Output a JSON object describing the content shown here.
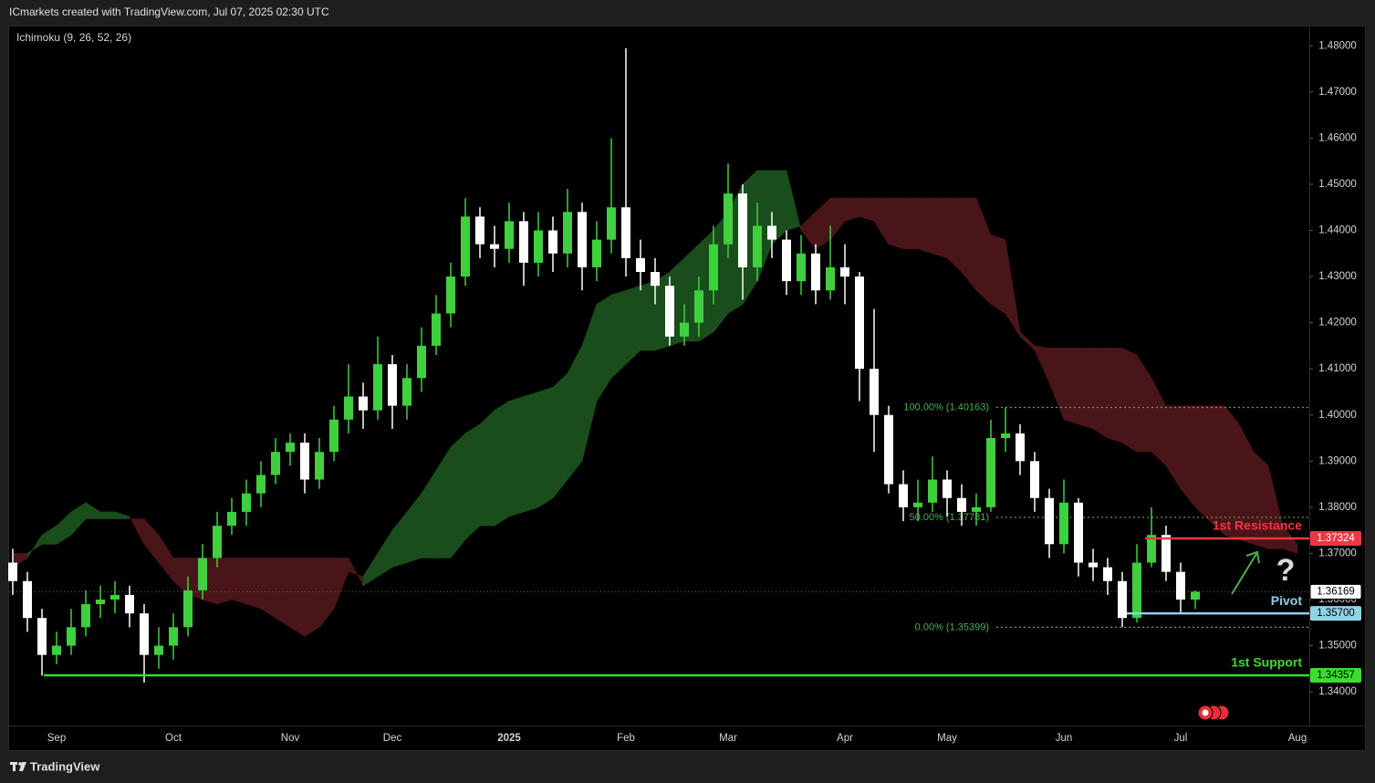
{
  "header": {
    "title": "ICmarkets created with TradingView.com, Jul 07, 2025 02:30 UTC"
  },
  "footer": {
    "brand": "TradingView"
  },
  "chart_data": {
    "type": "candlestick",
    "indicator": "Ichimoku (9, 26, 52, 26)",
    "categories": [
      null,
      null,
      null,
      "Sep",
      null,
      null,
      null,
      null,
      null,
      null,
      null,
      "Oct",
      null,
      null,
      null,
      null,
      null,
      null,
      null,
      "Nov",
      null,
      null,
      null,
      null,
      null,
      null,
      "Dec",
      null,
      null,
      null,
      null,
      null,
      null,
      null,
      "2025",
      null,
      null,
      null,
      null,
      null,
      null,
      null,
      "Feb",
      null,
      null,
      null,
      null,
      null,
      null,
      "Mar",
      null,
      null,
      null,
      null,
      null,
      null,
      null,
      "Apr",
      null,
      null,
      null,
      null,
      null,
      null,
      "May",
      null,
      null,
      null,
      null,
      null,
      null,
      null,
      "Jun",
      null,
      null,
      null,
      null,
      null,
      null,
      null,
      "Jul",
      null,
      null,
      null,
      null,
      null,
      null,
      null,
      "Aug"
    ],
    "open": [
      1.368,
      1.364,
      1.356,
      1.348,
      1.35,
      1.354,
      1.359,
      1.36,
      1.361,
      1.357,
      1.348,
      1.35,
      1.354,
      1.362,
      1.369,
      1.376,
      1.379,
      1.383,
      1.387,
      1.392,
      1.394,
      1.386,
      1.392,
      1.399,
      1.404,
      1.401,
      1.411,
      1.402,
      1.408,
      1.415,
      1.422,
      1.43,
      1.443,
      1.437,
      1.436,
      1.442,
      1.433,
      1.44,
      1.435,
      1.444,
      1.432,
      1.438,
      1.445,
      1.434,
      1.431,
      1.428,
      1.417,
      1.42,
      1.427,
      1.437,
      1.448,
      1.432,
      1.441,
      1.438,
      1.429,
      1.435,
      1.427,
      1.432,
      1.43,
      1.41,
      1.4,
      1.385,
      1.38,
      1.381,
      1.386,
      1.382,
      1.379,
      1.38,
      1.395,
      1.396,
      1.39,
      1.382,
      1.372,
      1.381,
      1.368,
      1.367,
      1.364,
      1.356,
      1.368,
      1.374,
      1.366,
      1.36,
      null,
      null,
      null,
      null,
      null,
      null,
      null
    ],
    "high": [
      1.371,
      1.366,
      1.358,
      1.353,
      1.358,
      1.362,
      1.363,
      1.364,
      1.363,
      1.359,
      1.354,
      1.357,
      1.365,
      1.372,
      1.379,
      1.382,
      1.386,
      1.39,
      1.395,
      1.396,
      1.396,
      1.395,
      1.402,
      1.411,
      1.407,
      1.417,
      1.413,
      1.411,
      1.419,
      1.426,
      1.433,
      1.447,
      1.445,
      1.441,
      1.446,
      1.444,
      1.444,
      1.443,
      1.449,
      1.446,
      1.442,
      1.46,
      1.4795,
      1.438,
      1.434,
      1.43,
      1.424,
      1.43,
      1.441,
      1.4545,
      1.45,
      1.446,
      1.444,
      1.44,
      1.439,
      1.437,
      1.441,
      1.437,
      1.431,
      1.423,
      1.402,
      1.388,
      1.386,
      1.391,
      1.388,
      1.385,
      1.383,
      1.399,
      1.4016,
      1.398,
      1.392,
      1.384,
      1.386,
      1.382,
      1.371,
      1.369,
      1.366,
      1.372,
      1.38,
      1.376,
      1.368,
      1.362,
      null,
      null,
      null,
      null,
      null,
      null,
      null
    ],
    "low": [
      1.361,
      1.353,
      1.3435,
      1.346,
      1.348,
      1.352,
      1.356,
      1.357,
      1.354,
      1.342,
      1.345,
      1.347,
      1.352,
      1.36,
      1.367,
      1.374,
      1.376,
      1.38,
      1.385,
      1.389,
      1.383,
      1.384,
      1.39,
      1.396,
      1.397,
      1.399,
      1.397,
      1.399,
      1.405,
      1.413,
      1.419,
      1.428,
      1.434,
      1.432,
      1.433,
      1.428,
      1.43,
      1.431,
      1.432,
      1.427,
      1.429,
      1.435,
      1.43,
      1.427,
      1.424,
      1.415,
      1.415,
      1.417,
      1.424,
      1.434,
      1.425,
      1.429,
      1.434,
      1.426,
      1.426,
      1.424,
      1.425,
      1.424,
      1.403,
      1.392,
      1.383,
      1.377,
      1.377,
      1.379,
      1.378,
      1.376,
      1.376,
      1.379,
      1.392,
      1.387,
      1.379,
      1.369,
      1.37,
      1.365,
      1.364,
      1.361,
      1.354,
      1.355,
      1.367,
      1.364,
      1.357,
      1.358,
      null,
      null,
      null,
      null,
      null,
      null,
      null
    ],
    "close": [
      1.364,
      1.356,
      1.348,
      1.35,
      1.354,
      1.359,
      1.36,
      1.361,
      1.357,
      1.348,
      1.35,
      1.354,
      1.362,
      1.369,
      1.376,
      1.379,
      1.383,
      1.387,
      1.392,
      1.394,
      1.386,
      1.392,
      1.399,
      1.404,
      1.401,
      1.411,
      1.402,
      1.408,
      1.415,
      1.422,
      1.43,
      1.443,
      1.437,
      1.436,
      1.442,
      1.433,
      1.44,
      1.435,
      1.444,
      1.432,
      1.438,
      1.445,
      1.434,
      1.431,
      1.428,
      1.417,
      1.42,
      1.427,
      1.437,
      1.448,
      1.432,
      1.441,
      1.438,
      1.429,
      1.435,
      1.427,
      1.432,
      1.43,
      1.41,
      1.4,
      1.385,
      1.38,
      1.381,
      1.386,
      1.382,
      1.379,
      1.38,
      1.395,
      1.396,
      1.39,
      1.382,
      1.372,
      1.381,
      1.368,
      1.367,
      1.364,
      1.356,
      1.368,
      1.374,
      1.366,
      1.36,
      1.3617,
      null,
      null,
      null,
      null,
      null,
      null,
      null
    ],
    "up_color": "#3fcf3f",
    "down_color": "#ffffff",
    "cloud": {
      "span_a": [
        1.367,
        1.369,
        1.374,
        1.376,
        1.379,
        1.381,
        1.379,
        1.379,
        1.378,
        1.372,
        1.368,
        1.364,
        1.361,
        1.36,
        1.359,
        1.36,
        1.359,
        1.358,
        1.356,
        1.354,
        1.352,
        1.354,
        1.358,
        1.366,
        1.365,
        1.37,
        1.375,
        1.379,
        1.383,
        1.388,
        1.393,
        1.396,
        1.398,
        1.401,
        1.403,
        1.404,
        1.405,
        1.406,
        1.409,
        1.415,
        1.424,
        1.426,
        1.427,
        1.428,
        1.429,
        1.431,
        1.434,
        1.437,
        1.44,
        1.444,
        1.45,
        1.453,
        1.453,
        1.453,
        1.44,
        1.436,
        1.438,
        1.442,
        1.443,
        1.442,
        1.437,
        1.436,
        1.436,
        1.435,
        1.434,
        1.431,
        1.427,
        1.424,
        1.422,
        1.417,
        1.414,
        1.407,
        1.399,
        1.398,
        1.397,
        1.395,
        1.394,
        1.392,
        1.392,
        1.389,
        1.384,
        1.38,
        1.377,
        1.374,
        1.373,
        1.372,
        1.371,
        1.371,
        1.37
      ],
      "span_b": [
        1.37,
        1.37,
        1.372,
        1.372,
        1.374,
        1.3775,
        1.3775,
        1.3775,
        1.3775,
        1.3775,
        1.374,
        1.369,
        1.369,
        1.369,
        1.369,
        1.369,
        1.369,
        1.369,
        1.369,
        1.369,
        1.369,
        1.369,
        1.369,
        1.369,
        1.363,
        1.365,
        1.367,
        1.368,
        1.369,
        1.369,
        1.369,
        1.373,
        1.376,
        1.376,
        1.378,
        1.379,
        1.38,
        1.382,
        1.386,
        1.39,
        1.403,
        1.408,
        1.411,
        1.414,
        1.414,
        1.415,
        1.416,
        1.416,
        1.418,
        1.422,
        1.424,
        1.429,
        1.437,
        1.44,
        1.441,
        1.444,
        1.447,
        1.447,
        1.447,
        1.447,
        1.447,
        1.447,
        1.447,
        1.447,
        1.447,
        1.447,
        1.447,
        1.439,
        1.438,
        1.418,
        1.415,
        1.4145,
        1.4145,
        1.4145,
        1.4145,
        1.4145,
        1.4145,
        1.413,
        1.408,
        1.402,
        1.402,
        1.402,
        1.402,
        1.402,
        1.398,
        1.392,
        1.389,
        1.376,
        1.372
      ],
      "bull_color": "#1a4d1c",
      "bear_color": "#4a1518"
    },
    "ylim": [
      1.3327,
      1.4844
    ],
    "yticks": [
      {
        "value": 1.34,
        "label": "1.34000"
      },
      {
        "value": 1.35,
        "label": "1.35000"
      },
      {
        "value": 1.36,
        "label": "1.36000"
      },
      {
        "value": 1.37,
        "label": "1.37000"
      },
      {
        "value": 1.38,
        "label": "1.38000"
      },
      {
        "value": 1.39,
        "label": "1.39000"
      },
      {
        "value": 1.4,
        "label": "1.40000"
      },
      {
        "value": 1.41,
        "label": "1.41000"
      },
      {
        "value": 1.42,
        "label": "1.42000"
      },
      {
        "value": 1.43,
        "label": "1.43000"
      },
      {
        "value": 1.44,
        "label": "1.44000"
      },
      {
        "value": 1.45,
        "label": "1.45000"
      },
      {
        "value": 1.46,
        "label": "1.46000"
      },
      {
        "value": 1.47,
        "label": "1.47000"
      },
      {
        "value": 1.48,
        "label": "1.48000"
      }
    ],
    "grid": false,
    "fibonacci": [
      {
        "value": 1.40163,
        "label": "100.00% (1.40163)"
      },
      {
        "value": 1.37781,
        "label": "50.00% (1.37781)"
      },
      {
        "value": 1.35399,
        "label": "0.00% (1.35399)"
      }
    ],
    "fib_color": "#4caf50",
    "levels": [
      {
        "name": "1st Resistance",
        "value": 1.37324,
        "label": "1.37324",
        "color": "#f23645"
      },
      {
        "name": "Pivot",
        "value": 1.357,
        "label": "1.35700",
        "color": "#8fd3e8"
      },
      {
        "name": "1st Support",
        "value": 1.34357,
        "label": "1.34357",
        "color": "#3ddc2f"
      }
    ],
    "last_price": {
      "value": 1.36169,
      "label": "1.36169"
    },
    "annotation": "?"
  }
}
